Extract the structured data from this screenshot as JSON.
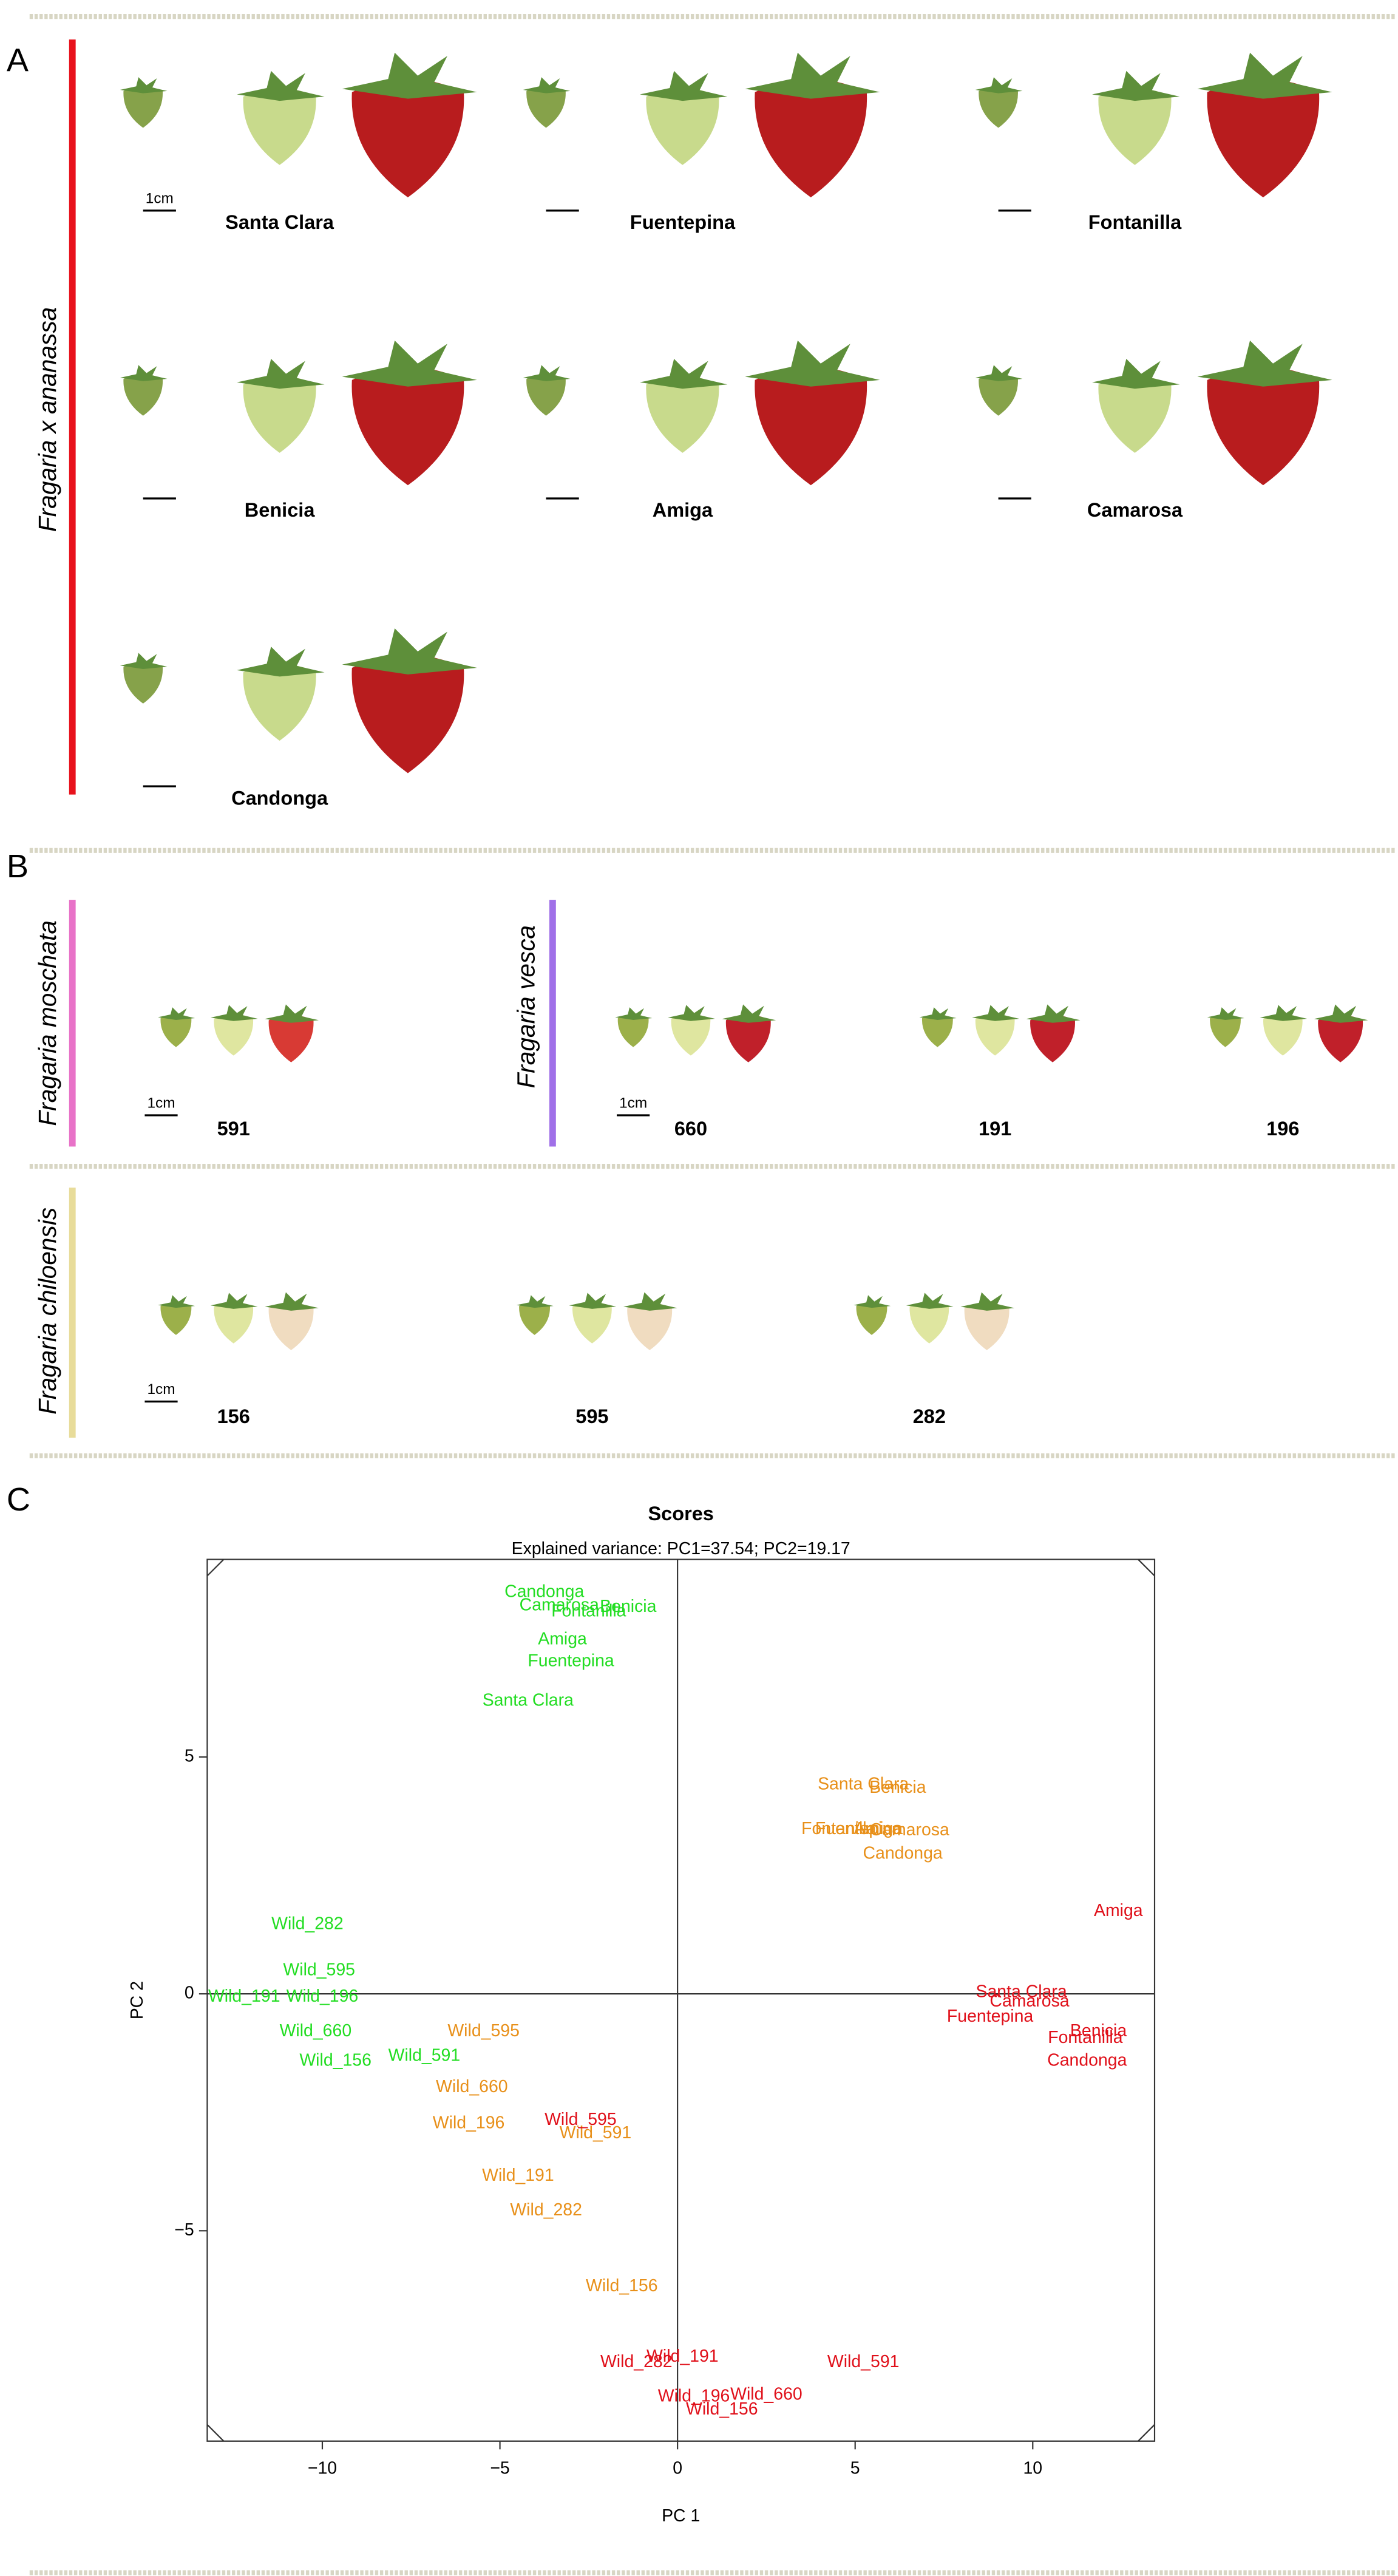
{
  "panels": {
    "A": {
      "letter": "A",
      "species": "Fragaria x ananassa",
      "cultivars": [
        "Santa Clara",
        "Fuentepina",
        "Fontanilla",
        "Benicia",
        "Amiga",
        "Camarosa",
        "Candonga"
      ]
    },
    "B": {
      "letter": "B",
      "moschata": {
        "species": "Fragaria moschata",
        "accessions": [
          "591"
        ]
      },
      "vesca": {
        "species": "Fragaria vesca",
        "accessions": [
          "660",
          "191",
          "196"
        ]
      },
      "chiloensis": {
        "species": "Fragaria chiloensis",
        "accessions": [
          "156",
          "595",
          "282"
        ]
      }
    },
    "C": {
      "letter": "C"
    },
    "scale_label": "1cm"
  },
  "chart_data": {
    "type": "scatter",
    "title": "Scores",
    "subtitle": "Explained variance: PC1=37.54; PC2=19.17",
    "x_label": "PC 1",
    "y_label": "PC 2",
    "xlim": [
      -13.24,
      13.43
    ],
    "ylim": [
      -9.44,
      9.17
    ],
    "xticks": [
      {
        "value": -10,
        "label": "−10"
      },
      {
        "value": -5,
        "label": "−5"
      },
      0,
      5,
      10
    ],
    "yticks": [
      {
        "value": -5,
        "label": "−5"
      },
      0,
      5
    ],
    "series": [
      {
        "color": "#22dd22",
        "labels": [
          "Candonga",
          "Camarosa",
          "Benicia",
          "Fontanilla",
          "Amiga",
          "Fuentepina",
          "Santa Clara",
          "Wild_282",
          "Wild_595",
          "Wild_191",
          "Wild_196",
          "Wild_660",
          "Wild_156",
          "Wild_591"
        ],
        "x": [
          -3.75,
          -3.33,
          -1.39,
          -2.5,
          -3.24,
          -3.0,
          -4.21,
          -10.42,
          -10.09,
          -12.2,
          -10.0,
          -10.19,
          -9.63,
          -7.13
        ],
        "values": [
          8.47,
          8.19,
          8.16,
          8.06,
          7.47,
          7.01,
          6.18,
          1.46,
          0.49,
          -0.07,
          -0.07,
          -0.8,
          -1.42,
          -1.32
        ]
      },
      {
        "color": "#e8901a",
        "labels": [
          "Santa Clara",
          "Benicia",
          "Fontanilla",
          "Fuentepina",
          "Amiga",
          "Camarosa",
          "Candonga",
          "Wild_595",
          "Wild_660",
          "Wild_196",
          "Wild_591",
          "Wild_191",
          "Wild_282",
          "Wild_156"
        ],
        "x": [
          5.23,
          6.2,
          4.54,
          5.09,
          5.65,
          6.53,
          6.34,
          -5.46,
          -5.79,
          -5.88,
          -2.31,
          -4.49,
          -3.7,
          -1.57
        ],
        "values": [
          4.41,
          4.34,
          3.47,
          3.47,
          3.47,
          3.44,
          2.95,
          -0.8,
          -1.98,
          -2.74,
          -2.95,
          -3.85,
          -4.58,
          -6.18
        ]
      },
      {
        "color": "#e0101a",
        "labels": [
          "Amiga",
          "Santa Clara",
          "Camarosa",
          "Fuentepina",
          "Benicia",
          "Fontanilla",
          "Candonga",
          "Wild_595",
          "Wild_191",
          "Wild_282",
          "Wild_591",
          "Wild_196",
          "Wild_660",
          "Wild_156"
        ],
        "x": [
          12.41,
          9.68,
          9.91,
          8.8,
          11.85,
          11.48,
          11.53,
          -2.73,
          0.14,
          -1.16,
          5.23,
          0.46,
          2.5,
          1.25
        ],
        "values": [
          1.74,
          0.03,
          -0.17,
          -0.49,
          -0.8,
          -0.94,
          -1.42,
          -2.67,
          -7.67,
          -7.78,
          -7.78,
          -8.51,
          -8.47,
          -8.78
        ]
      }
    ]
  }
}
